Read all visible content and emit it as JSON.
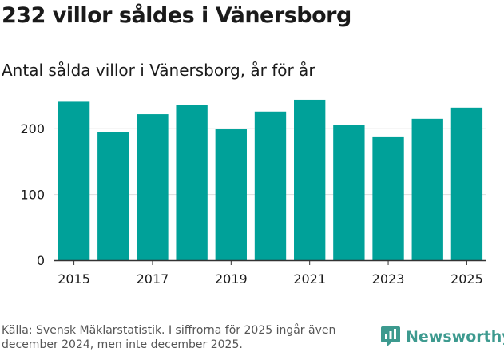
{
  "title": "232 villor såldes i Vänersborg",
  "subtitle": "Antal sålda villor i Vänersborg, år för år",
  "source": "Källa: Svensk Mäklarstatistik. I siffrorna för 2025 ingår även december 2024, men inte december 2025.",
  "brand": {
    "name": "Newsworthy",
    "color": "#3d9a8f"
  },
  "colors": {
    "bar": "#00a199",
    "grid": "#dddddd",
    "axis": "#333333"
  },
  "chart_data": {
    "type": "bar",
    "title": "Antal sålda villor i Vänersborg, år för år",
    "xlabel": "",
    "ylabel": "",
    "categories": [
      "2015",
      "2016",
      "2017",
      "2018",
      "2019",
      "2020",
      "2021",
      "2022",
      "2023",
      "2024",
      "2025"
    ],
    "values": [
      241,
      195,
      222,
      236,
      199,
      226,
      244,
      206,
      187,
      215,
      232
    ],
    "ylim": [
      0,
      250
    ],
    "yticks": [
      0,
      100,
      200
    ],
    "xtick_labels": [
      "2015",
      "2017",
      "2019",
      "2021",
      "2023",
      "2025"
    ],
    "grid": true
  }
}
